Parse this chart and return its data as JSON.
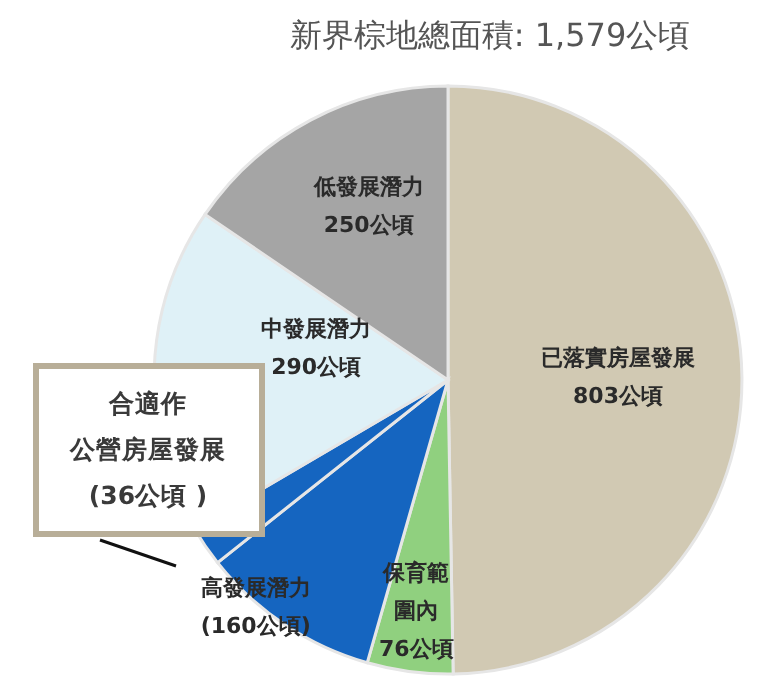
{
  "chart_data": {
    "type": "pie",
    "title": "新界棕地總面積: 1,579公頃",
    "categories": [
      "已落實房屋發展",
      "保育範圍內",
      "高發展潛力",
      "合適作公營房屋發展",
      "中發展潛力",
      "低發展潛力"
    ],
    "values": [
      803,
      76,
      160,
      36,
      290,
      250
    ],
    "value_labels": [
      "803公頃",
      "76公頃",
      "(160公頃)",
      "(36公頃 )",
      "290公頃",
      "250公頃"
    ],
    "colors": [
      "#d1c9b3",
      "#90d07f",
      "#1565c0",
      "#1565c0",
      "#dff1f7",
      "#a5a5a5"
    ]
  }
}
